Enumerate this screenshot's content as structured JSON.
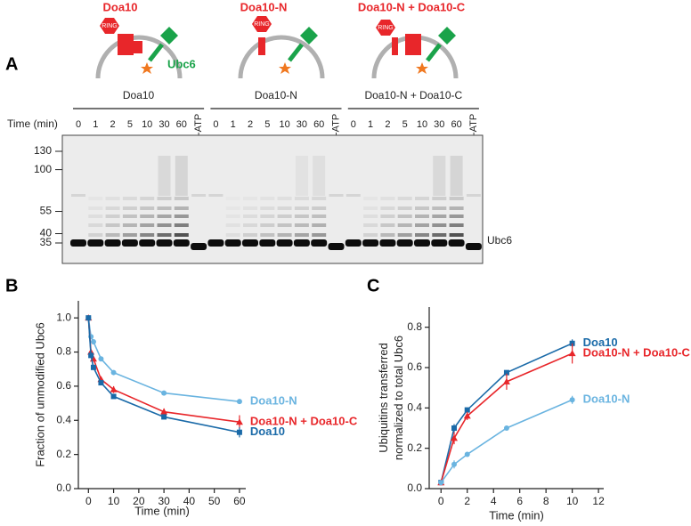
{
  "panel_labels": [
    "A",
    "B",
    "C"
  ],
  "schematics": [
    {
      "title": "Doa10",
      "ring": "RING",
      "e2": "Ubc6"
    },
    {
      "title": "Doa10-N",
      "ring": "RING"
    },
    {
      "title": "Doa10-N + Doa10-C",
      "ring": "RING"
    }
  ],
  "gel": {
    "groups": [
      "Doa10",
      "Doa10-N",
      "Doa10-N + Doa10-C"
    ],
    "time_label": "Time (min)",
    "times": [
      "0",
      "1",
      "2",
      "5",
      "10",
      "30",
      "60"
    ],
    "control": "-ATP",
    "markers": [
      130,
      100,
      55,
      40,
      35
    ],
    "band_label": "Ubc6"
  },
  "chart_data": [
    {
      "type": "line",
      "xlabel": "Time (min)",
      "ylabel": [
        "Fraction of unmodified Ubc6"
      ],
      "x": [
        0,
        1,
        2,
        5,
        10,
        30,
        60
      ],
      "xlim": [
        -4,
        62.5
      ],
      "xticks": [
        0,
        10,
        20,
        30,
        40,
        50,
        60
      ],
      "ylim": [
        0,
        1.1
      ],
      "yticks": [
        {
          "value": 0,
          "label": "0.0"
        },
        0.2,
        0.4,
        0.6,
        0.8,
        {
          "value": 1,
          "label": "1.0"
        }
      ],
      "series": [
        {
          "name": "Doa10-N",
          "color": "#6ab4e0",
          "marker": "circle",
          "values": [
            1.0,
            0.89,
            0.86,
            0.76,
            0.68,
            0.56,
            0.51
          ],
          "errors": [
            0,
            0.01,
            0.01,
            0.01,
            0.01,
            0.01,
            0.01
          ]
        },
        {
          "name": "Doa10-N + Doa10-C",
          "color": "#e8262a",
          "marker": "triangle",
          "values": [
            1.0,
            0.8,
            0.76,
            0.64,
            0.58,
            0.45,
            0.39
          ],
          "errors": [
            0,
            0.01,
            0.01,
            0.01,
            0.02,
            0.02,
            0.04
          ]
        },
        {
          "name": "Doa10",
          "color": "#1a6aa8",
          "marker": "square",
          "values": [
            1.0,
            0.78,
            0.71,
            0.62,
            0.54,
            0.42,
            0.33
          ],
          "errors": [
            0,
            0.01,
            0.01,
            0.01,
            0.01,
            0.01,
            0.03
          ]
        }
      ]
    },
    {
      "type": "line",
      "xlabel": "Time (min)",
      "ylabel": [
        "Ubiquitins transferred",
        "normalized to total Ubc6"
      ],
      "x": [
        0,
        1,
        2,
        5,
        10
      ],
      "xlim": [
        -0.9,
        12.4
      ],
      "xticks": [
        0,
        2,
        4,
        6,
        8,
        10,
        12
      ],
      "ylim": [
        0,
        0.9
      ],
      "yticks": [
        {
          "value": 0,
          "label": "0.0"
        },
        0.2,
        0.4,
        0.6,
        0.8
      ],
      "series": [
        {
          "name": "Doa10",
          "color": "#1a6aa8",
          "marker": "square",
          "values": [
            0.03,
            0.3,
            0.39,
            0.575,
            0.72
          ],
          "errors": [
            0,
            0.02,
            0.01,
            0.01,
            0.02
          ]
        },
        {
          "name": "Doa10-N + Doa10-C",
          "color": "#e8262a",
          "marker": "triangle",
          "values": [
            0.03,
            0.25,
            0.36,
            0.53,
            0.67
          ],
          "errors": [
            0,
            0.03,
            0.02,
            0.04,
            0.05
          ]
        },
        {
          "name": "Doa10-N",
          "color": "#6ab4e0",
          "marker": "circle",
          "values": [
            0.03,
            0.12,
            0.17,
            0.3,
            0.44
          ],
          "errors": [
            0,
            0.02,
            0.01,
            0.01,
            0.02
          ]
        }
      ]
    }
  ]
}
